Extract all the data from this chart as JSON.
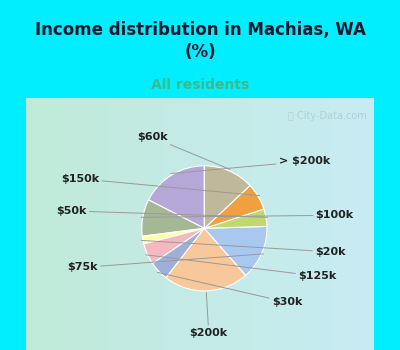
{
  "title": "Income distribution in Machias, WA\n(%)",
  "subtitle": "All residents",
  "title_color": "#1a1a2e",
  "subtitle_color": "#3dba8a",
  "bg_top": "#00eeff",
  "bg_chart_left": "#c8eedd",
  "bg_chart_right": "#b8e8f0",
  "labels": [
    "> $200k",
    "$100k",
    "$20k",
    "$125k",
    "$30k",
    "$200k",
    "$75k",
    "$50k",
    "$150k",
    "$60k"
  ],
  "values": [
    17.5,
    9.5,
    2.0,
    5.5,
    5.0,
    22.0,
    14.0,
    4.5,
    7.0,
    13.0
  ],
  "colors": [
    "#b5a8d8",
    "#a5b896",
    "#ffffaa",
    "#f4b8c0",
    "#9fb0d8",
    "#f8c89a",
    "#a8c8f0",
    "#c0d870",
    "#f0a040",
    "#c0b89a"
  ],
  "label_fontsize": 8,
  "label_color": "#222222",
  "watermark_color": "#aacccc",
  "figsize": [
    4.0,
    3.5
  ],
  "dpi": 100
}
